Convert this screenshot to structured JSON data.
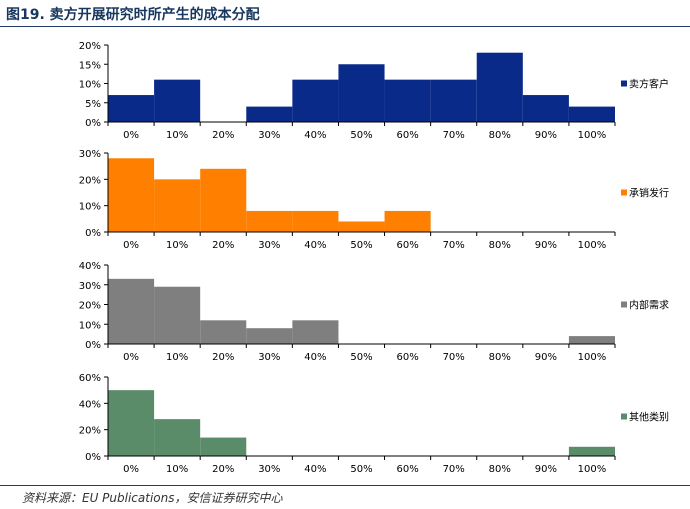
{
  "figure": {
    "title": "图19. 卖方开展研究时所产生的成本分配",
    "source": "资料来源：EU Publications，安信证券研究中心"
  },
  "chart_data": [
    {
      "type": "bar",
      "categories": [
        "0%",
        "10%",
        "20%",
        "30%",
        "40%",
        "50%",
        "60%",
        "70%",
        "80%",
        "90%",
        "100%"
      ],
      "series": [
        {
          "name": "卖方客户",
          "values": [
            7,
            11,
            0,
            4,
            11,
            15,
            11,
            11,
            18,
            7,
            4
          ],
          "color": "#0a2a8a"
        }
      ],
      "ylim": [
        0,
        20
      ],
      "yticks": [
        "0%",
        "5%",
        "10%",
        "15%",
        "20%"
      ],
      "legend": "right"
    },
    {
      "type": "bar",
      "categories": [
        "0%",
        "10%",
        "20%",
        "30%",
        "40%",
        "50%",
        "60%",
        "70%",
        "80%",
        "90%",
        "100%"
      ],
      "series": [
        {
          "name": "承销发行",
          "values": [
            28,
            20,
            24,
            8,
            8,
            4,
            8,
            0,
            0,
            0,
            0
          ],
          "color": "#ff8000"
        }
      ],
      "ylim": [
        0,
        30
      ],
      "yticks": [
        "0%",
        "10%",
        "20%",
        "30%"
      ],
      "legend": "right"
    },
    {
      "type": "bar",
      "categories": [
        "0%",
        "10%",
        "20%",
        "30%",
        "40%",
        "50%",
        "60%",
        "70%",
        "80%",
        "90%",
        "100%"
      ],
      "series": [
        {
          "name": "内部需求",
          "values": [
            33,
            29,
            12,
            8,
            12,
            0,
            0,
            0,
            0,
            0,
            4
          ],
          "color": "#7f7f7f"
        }
      ],
      "ylim": [
        0,
        40
      ],
      "yticks": [
        "0%",
        "10%",
        "20%",
        "30%",
        "40%"
      ],
      "legend": "right"
    },
    {
      "type": "bar",
      "categories": [
        "0%",
        "10%",
        "20%",
        "30%",
        "40%",
        "50%",
        "60%",
        "70%",
        "80%",
        "90%",
        "100%"
      ],
      "series": [
        {
          "name": "其他类别",
          "values": [
            50,
            28,
            14,
            0,
            0,
            0,
            0,
            0,
            0,
            0,
            7
          ],
          "color": "#5b8c6a"
        }
      ],
      "ylim": [
        0,
        60
      ],
      "yticks": [
        "0%",
        "20%",
        "40%",
        "60%"
      ],
      "legend": "right"
    }
  ]
}
